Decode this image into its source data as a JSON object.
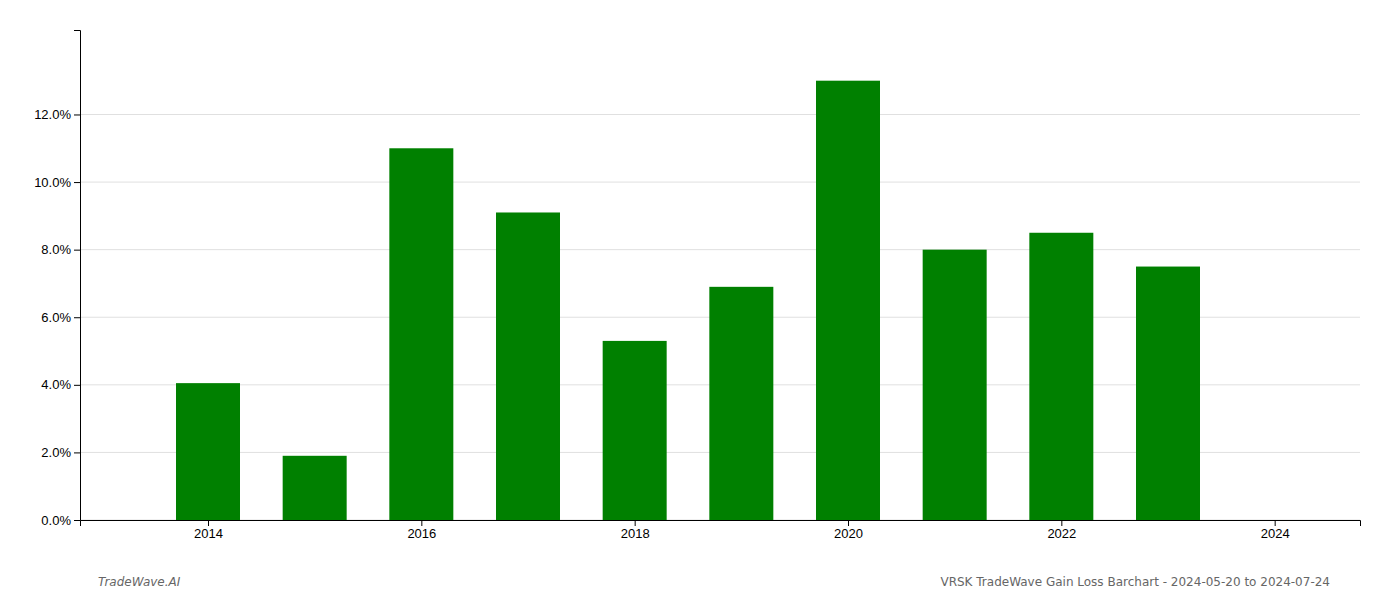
{
  "chart_data": {
    "type": "bar",
    "x": [
      2014,
      2015,
      2016,
      2017,
      2018,
      2019,
      2020,
      2021,
      2022,
      2023
    ],
    "values": [
      0.0405,
      0.019,
      0.11,
      0.091,
      0.053,
      0.069,
      0.13,
      0.08,
      0.085,
      0.075
    ],
    "color": "#008000",
    "xlim": [
      2012.8,
      2024.8
    ],
    "xticks": [
      2014,
      2016,
      2018,
      2020,
      2022,
      2024
    ],
    "ylim": [
      0,
      0.145
    ],
    "yticks": [
      {
        "value": 0.0,
        "label": "0.0%"
      },
      {
        "value": 0.02,
        "label": "2.0%"
      },
      {
        "value": 0.04,
        "label": "4.0%"
      },
      {
        "value": 0.06,
        "label": "6.0%"
      },
      {
        "value": 0.08,
        "label": "8.0%"
      },
      {
        "value": 0.1,
        "label": "10.0%"
      },
      {
        "value": 0.12,
        "label": "12.0%"
      }
    ],
    "grid": true,
    "annotations": [
      "TradeWave.AI",
      "VRSK TradeWave Gain Loss Barchart - 2024-05-20 to 2024-07-24"
    ]
  }
}
